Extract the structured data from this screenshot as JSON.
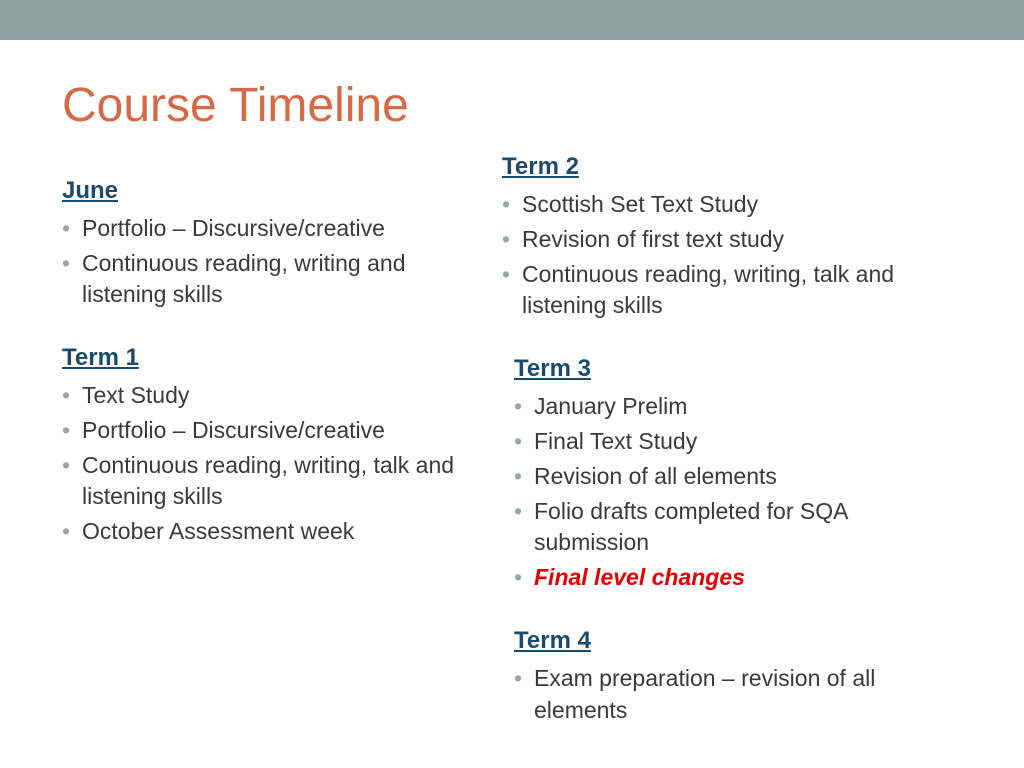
{
  "colors": {
    "top_bar": "#8fa0a0",
    "title": "#d56a47",
    "heading": "#1a4a6e",
    "body_text": "#3a3a3a",
    "bullet": "#9aa5a5",
    "emphasis": "#e60000",
    "background": "#ffffff"
  },
  "typography": {
    "title_fontsize": 48,
    "heading_fontsize": 24,
    "body_fontsize": 23
  },
  "title": "Course Timeline",
  "left_sections": [
    {
      "heading": "June",
      "items": [
        "Portfolio – Discursive/creative",
        "Continuous reading, writing and listening skills"
      ]
    },
    {
      "heading": "Term 1",
      "items": [
        "Text Study",
        "Portfolio – Discursive/creative",
        "Continuous reading, writing, talk and listening skills",
        "October Assessment week"
      ]
    }
  ],
  "right_sections": [
    {
      "heading": "Term 2",
      "items": [
        "Scottish Set Text Study",
        "Revision of first text study",
        "Continuous reading, writing, talk and listening skills"
      ]
    },
    {
      "heading": "Term 3",
      "inset": true,
      "items": [
        "January Prelim",
        "Final Text Study",
        "Revision of all elements",
        "Folio drafts completed for SQA submission",
        {
          "text": "Final level changes",
          "emphasis": true
        }
      ]
    },
    {
      "heading": "Term 4",
      "inset": true,
      "items": [
        "Exam preparation – revision of all elements"
      ]
    }
  ]
}
